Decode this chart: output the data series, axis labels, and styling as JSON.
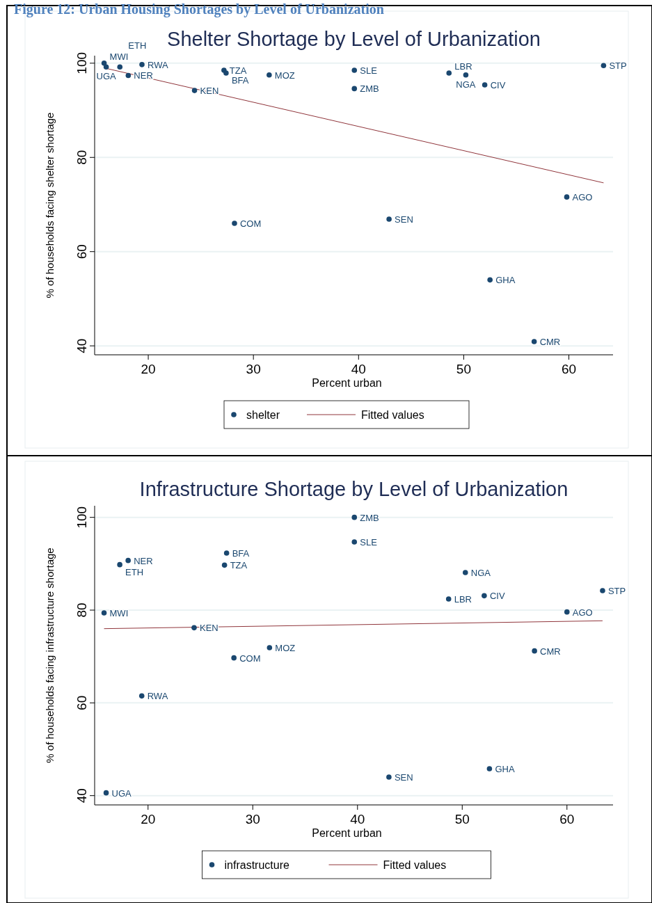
{
  "chart_data": [
    {
      "type": "scatter",
      "title": "Shelter Shortage by Level of Urbanization",
      "xlabel": "Percent urban",
      "ylabel": "% of households facing shelter shortage",
      "annotations": [
        "Figure 12: Urban Housing Shortages by Level of Urbanization",
        {
          "text": "MWI",
          "x": 15.8,
          "y": 100
        },
        {
          "text": "UGA",
          "x": 16.0,
          "y": 99.2
        },
        {
          "text": "ETH",
          "x": 17.3,
          "y": 99.2
        },
        {
          "text": "RWA",
          "x": 19.4,
          "y": 99.7
        },
        {
          "text": "NER",
          "x": 18.1,
          "y": 97.4
        },
        {
          "text": "KEN",
          "x": 24.4,
          "y": 94.2
        },
        {
          "text": "TZA",
          "x": 27.2,
          "y": 98.5
        },
        {
          "text": "BFA",
          "x": 27.4,
          "y": 97.9
        },
        {
          "text": "MOZ",
          "x": 31.5,
          "y": 97.5
        },
        {
          "text": "COM",
          "x": 28.2,
          "y": 66.0
        },
        {
          "text": "SLE",
          "x": 39.6,
          "y": 98.5
        },
        {
          "text": "ZMB",
          "x": 39.6,
          "y": 94.6
        },
        {
          "text": "SEN",
          "x": 42.9,
          "y": 66.9
        },
        {
          "text": "LBR",
          "x": 48.6,
          "y": 97.9
        },
        {
          "text": "NGA",
          "x": 50.2,
          "y": 97.5
        },
        {
          "text": "CIV",
          "x": 52.0,
          "y": 95.4
        },
        {
          "text": "GHA",
          "x": 52.5,
          "y": 54.0
        },
        {
          "text": "CMR",
          "x": 56.7,
          "y": 40.9
        },
        {
          "text": "AGO",
          "x": 59.8,
          "y": 71.6
        },
        {
          "text": "STP",
          "x": 63.3,
          "y": 99.5
        }
      ],
      "series": [
        {
          "name": "shelter",
          "marker": "circle",
          "color": "#1a476f",
          "x": [
            15.8,
            16.0,
            17.3,
            19.4,
            18.1,
            24.4,
            27.2,
            27.4,
            31.5,
            28.2,
            39.6,
            39.6,
            42.9,
            48.6,
            50.2,
            52.0,
            52.5,
            56.7,
            59.8,
            63.3
          ],
          "values": [
            100,
            99.2,
            99.2,
            99.7,
            97.4,
            94.2,
            98.5,
            97.9,
            97.5,
            66.0,
            98.5,
            94.6,
            66.9,
            97.9,
            97.5,
            95.4,
            54.0,
            40.9,
            71.6,
            99.5
          ]
        },
        {
          "name": "Fitted values",
          "type": "line",
          "color": "#90353b",
          "x": [
            15.8,
            63.3
          ],
          "values": [
            99.0,
            74.6
          ]
        }
      ],
      "xlim": [
        14.9,
        64.2
      ],
      "ylim": [
        38.1,
        101.6
      ],
      "xticks": [
        20,
        30,
        40,
        50,
        60
      ],
      "yticks": [
        40,
        60,
        80,
        100
      ],
      "grid": "y",
      "legend": "bottom",
      "line_style": "solid"
    },
    {
      "type": "scatter",
      "title": "Infrastructure Shortage by Level of Urbanization",
      "xlabel": "Percent urban",
      "ylabel": "% of households facing infrastructure shortage",
      "annotations": [
        {
          "text": "ZMB",
          "x": 39.7,
          "y": 100
        },
        {
          "text": "SLE",
          "x": 39.7,
          "y": 94.7
        },
        {
          "text": "BFA",
          "x": 27.5,
          "y": 92.3
        },
        {
          "text": "NER",
          "x": 18.1,
          "y": 90.7
        },
        {
          "text": "ETH",
          "x": 17.3,
          "y": 89.8
        },
        {
          "text": "TZA",
          "x": 27.3,
          "y": 89.7
        },
        {
          "text": "NGA",
          "x": 50.3,
          "y": 88.1
        },
        {
          "text": "STP",
          "x": 63.4,
          "y": 84.2
        },
        {
          "text": "CIV",
          "x": 52.1,
          "y": 83.1
        },
        {
          "text": "LBR",
          "x": 48.7,
          "y": 82.4
        },
        {
          "text": "MWI",
          "x": 15.8,
          "y": 79.4
        },
        {
          "text": "AGO",
          "x": 60.0,
          "y": 79.6
        },
        {
          "text": "KEN",
          "x": 24.4,
          "y": 76.2
        },
        {
          "text": "MOZ",
          "x": 31.6,
          "y": 71.9
        },
        {
          "text": "CMR",
          "x": 56.9,
          "y": 71.2
        },
        {
          "text": "COM",
          "x": 28.2,
          "y": 69.7
        },
        {
          "text": "RWA",
          "x": 19.4,
          "y": 61.5
        },
        {
          "text": "GHA",
          "x": 52.6,
          "y": 45.8
        },
        {
          "text": "SEN",
          "x": 43.0,
          "y": 44.0
        },
        {
          "text": "UGA",
          "x": 16.0,
          "y": 40.6
        }
      ],
      "series": [
        {
          "name": "infrastructure",
          "marker": "circle",
          "color": "#1a476f",
          "x": [
            39.7,
            39.7,
            27.5,
            18.1,
            17.3,
            27.3,
            50.3,
            63.4,
            52.1,
            48.7,
            15.8,
            60.0,
            24.4,
            31.6,
            56.9,
            28.2,
            19.4,
            52.6,
            43.0,
            16.0
          ],
          "values": [
            100,
            94.7,
            92.3,
            90.7,
            89.8,
            89.7,
            88.1,
            84.2,
            83.1,
            82.4,
            79.4,
            79.6,
            76.2,
            71.9,
            71.2,
            69.7,
            61.5,
            45.8,
            44.0,
            40.6
          ]
        },
        {
          "name": "Fitted values",
          "type": "line",
          "color": "#90353b",
          "x": [
            15.8,
            63.4
          ],
          "values": [
            76.0,
            77.7
          ]
        }
      ],
      "xlim": [
        14.9,
        64.4
      ],
      "ylim": [
        38,
        102.5
      ],
      "xticks": [
        20,
        30,
        40,
        50,
        60
      ],
      "yticks": [
        40,
        60,
        80,
        100
      ],
      "grid": "y",
      "legend": "bottom",
      "line_style": "solid"
    }
  ]
}
